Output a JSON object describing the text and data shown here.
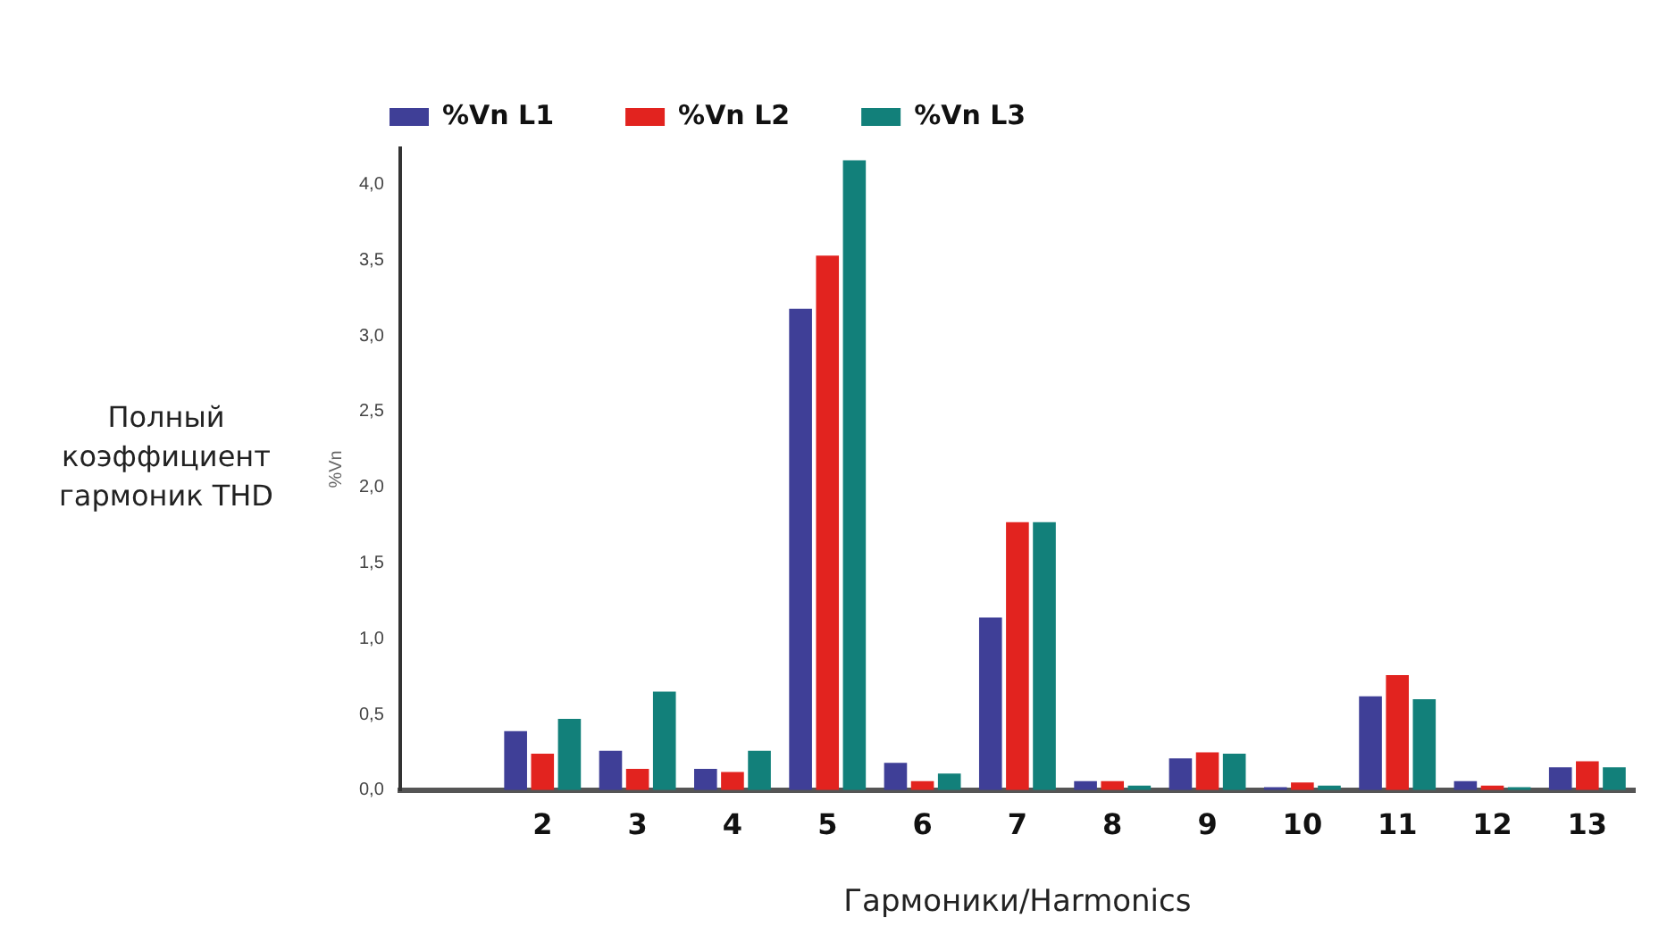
{
  "chart_data": {
    "type": "bar",
    "categories": [
      null,
      "2",
      "3",
      "4",
      "5",
      "6",
      "7",
      "8",
      "9",
      "10",
      "11",
      "12",
      "13"
    ],
    "series": [
      {
        "name": "%Vn L1",
        "color": "#3f3f97",
        "values": [
          null,
          0.39,
          0.26,
          0.14,
          3.18,
          0.18,
          1.14,
          0.06,
          0.21,
          0.02,
          0.62,
          0.06,
          0.15
        ]
      },
      {
        "name": "%Vn L2",
        "color": "#e2231f",
        "values": [
          null,
          0.24,
          0.14,
          0.12,
          3.53,
          0.06,
          1.77,
          0.06,
          0.25,
          0.05,
          0.76,
          0.03,
          0.19
        ]
      },
      {
        "name": "%Vn L3",
        "color": "#12807a",
        "values": [
          null,
          0.47,
          0.65,
          0.26,
          4.16,
          0.11,
          1.77,
          0.03,
          0.24,
          0.03,
          0.6,
          0.02,
          0.15
        ]
      }
    ],
    "ylim": [
      0,
      4.24
    ],
    "yticks": [
      {
        "value": 0,
        "label": "0,0"
      },
      {
        "value": 0.5,
        "label": "0,5"
      },
      {
        "value": 1,
        "label": "1,0"
      },
      {
        "value": 1.5,
        "label": "1,5"
      },
      {
        "value": 2,
        "label": "2,0"
      },
      {
        "value": 2.5,
        "label": "2,5"
      },
      {
        "value": 3,
        "label": "3,0"
      },
      {
        "value": 3.5,
        "label": "3,5"
      },
      {
        "value": 4,
        "label": "4,0"
      }
    ],
    "ylabel": "%Vn",
    "xlabel": "Гармоники/Harmonics",
    "annotations": [
      "Полный коэффициент гармоник THD"
    ],
    "grid": false,
    "legend": "top left"
  }
}
